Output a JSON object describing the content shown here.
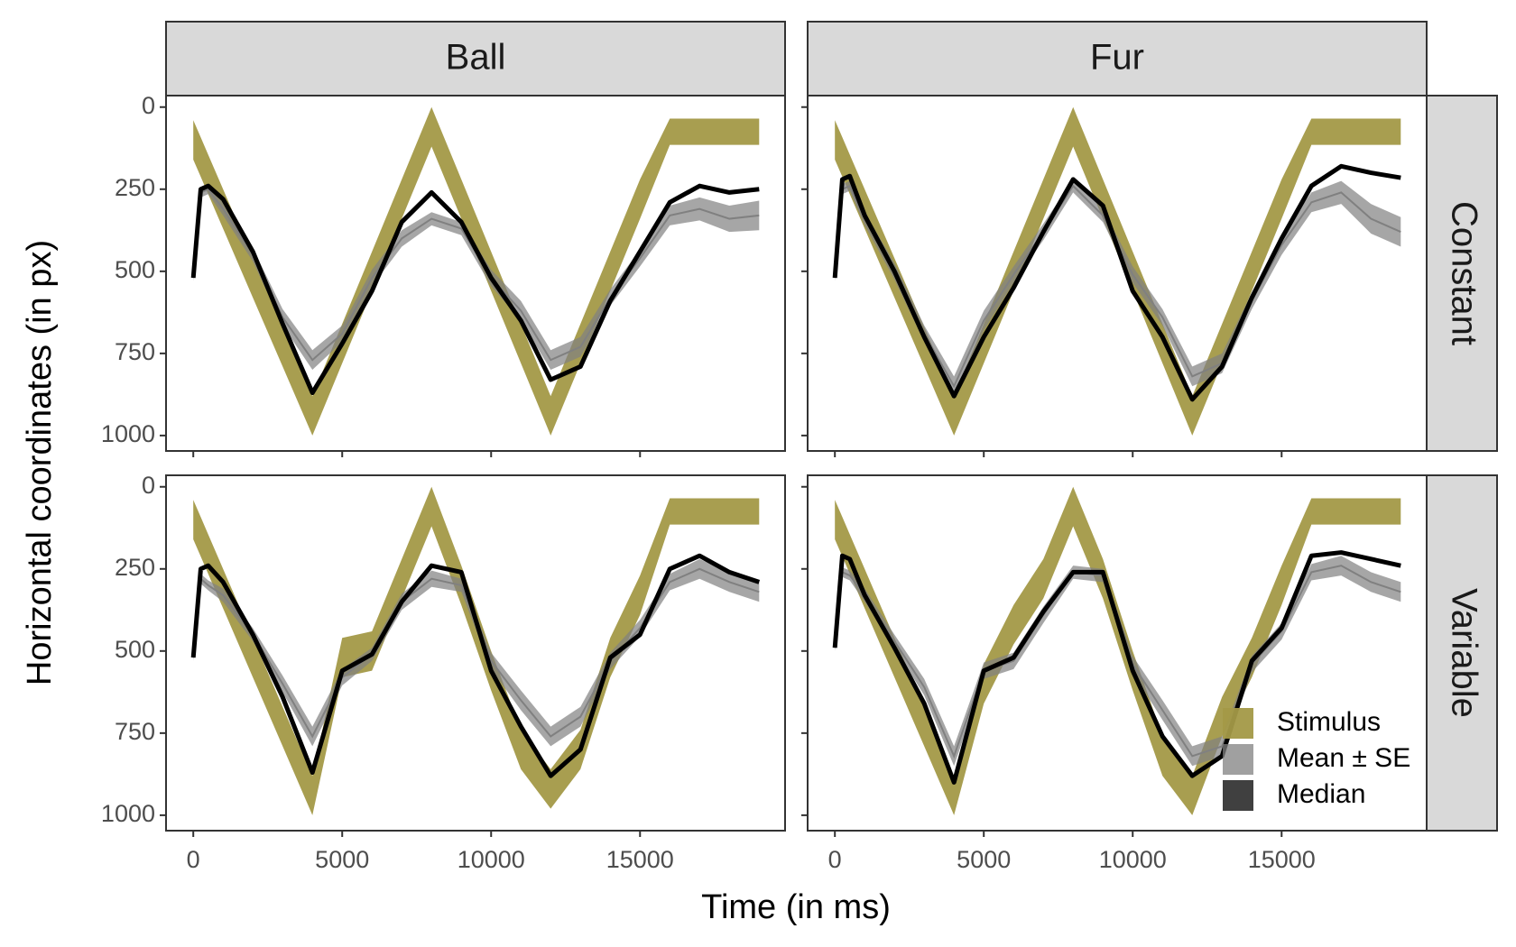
{
  "chart_data": {
    "type": "facet-ribbon-line",
    "xlabel": "Time (in ms)",
    "ylabel": "Horizontal coordinates (in px)",
    "columns": [
      "Ball",
      "Fur"
    ],
    "rows": [
      "Constant",
      "Variable"
    ],
    "xlim": [
      -915,
      19870
    ],
    "ylim": [
      -35,
      1047
    ],
    "y_reversed": true,
    "xticks": [
      0,
      5000,
      10000,
      15000
    ],
    "yticks": [
      0,
      250,
      500,
      750,
      1000
    ],
    "grid": false,
    "legend": "bottom-right",
    "series": [
      {
        "name": "Stimulus",
        "color": "#a39947"
      },
      {
        "name": "Mean ± SE",
        "color": "#808080"
      },
      {
        "name": "Median",
        "color": "#000000"
      }
    ],
    "panels": [
      {
        "x": [
          0,
          250,
          500,
          1000,
          2000,
          3000,
          4000,
          5000,
          6000,
          7000,
          8000,
          9000,
          10000,
          11000,
          12000,
          13000,
          14000,
          15000,
          16000,
          17000,
          18000,
          19000
        ],
        "stimulus_low": [
          40,
          92,
          145,
          250,
          460,
          670,
          880,
          660,
          440,
          220,
          0,
          220,
          440,
          660,
          880,
          660,
          440,
          220,
          35,
          35,
          35,
          35
        ],
        "stimulus_high": [
          160,
          212,
          265,
          370,
          580,
          790,
          1000,
          780,
          560,
          340,
          120,
          340,
          560,
          780,
          1000,
          780,
          560,
          340,
          115,
          115,
          115,
          115
        ],
        "mean": [
          520,
          260,
          250,
          310,
          450,
          640,
          770,
          690,
          520,
          400,
          340,
          370,
          520,
          620,
          770,
          730,
          580,
          460,
          330,
          310,
          340,
          330
        ],
        "se": [
          10,
          15,
          15,
          20,
          20,
          25,
          30,
          25,
          25,
          25,
          20,
          20,
          25,
          30,
          30,
          30,
          25,
          25,
          30,
          35,
          40,
          45
        ],
        "median": [
          520,
          250,
          240,
          280,
          440,
          660,
          870,
          720,
          560,
          350,
          260,
          350,
          520,
          650,
          830,
          790,
          590,
          440,
          290,
          240,
          260,
          250
        ]
      },
      {
        "x": [
          0,
          250,
          500,
          1000,
          2000,
          3000,
          4000,
          5000,
          6000,
          7000,
          8000,
          9000,
          10000,
          11000,
          12000,
          13000,
          14000,
          15000,
          16000,
          17000,
          18000,
          19000
        ],
        "stimulus_low": [
          40,
          92,
          145,
          250,
          460,
          670,
          880,
          660,
          440,
          220,
          0,
          220,
          440,
          660,
          880,
          660,
          440,
          220,
          35,
          35,
          35,
          35
        ],
        "stimulus_high": [
          160,
          212,
          265,
          370,
          580,
          790,
          1000,
          780,
          560,
          340,
          120,
          340,
          560,
          780,
          1000,
          780,
          560,
          340,
          115,
          115,
          115,
          115
        ],
        "mean": [
          520,
          250,
          240,
          340,
          500,
          690,
          850,
          650,
          510,
          380,
          240,
          330,
          510,
          640,
          820,
          780,
          590,
          420,
          290,
          260,
          340,
          380
        ],
        "se": [
          10,
          15,
          15,
          20,
          25,
          25,
          30,
          30,
          25,
          25,
          20,
          20,
          25,
          25,
          30,
          30,
          25,
          30,
          30,
          35,
          45,
          45
        ],
        "median": [
          520,
          220,
          210,
          330,
          500,
          700,
          880,
          700,
          550,
          380,
          220,
          300,
          560,
          700,
          890,
          790,
          580,
          400,
          240,
          180,
          200,
          215
        ]
      },
      {
        "x": [
          0,
          250,
          500,
          1000,
          2000,
          3000,
          4000,
          5000,
          6000,
          7000,
          8000,
          9000,
          10000,
          11000,
          12000,
          13000,
          14000,
          15000,
          16000,
          17000,
          18000,
          19000
        ],
        "stimulus_low": [
          40,
          92,
          145,
          250,
          460,
          670,
          880,
          460,
          440,
          220,
          0,
          240,
          500,
          740,
          860,
          740,
          460,
          270,
          35,
          35,
          35,
          35
        ],
        "stimulus_high": [
          160,
          212,
          265,
          370,
          580,
          790,
          1000,
          580,
          560,
          340,
          120,
          360,
          620,
          860,
          980,
          860,
          580,
          390,
          115,
          115,
          115,
          115
        ],
        "mean": [
          520,
          280,
          300,
          330,
          450,
          600,
          760,
          580,
          510,
          350,
          280,
          300,
          530,
          650,
          760,
          700,
          530,
          430,
          290,
          250,
          290,
          320
        ],
        "se": [
          10,
          15,
          15,
          20,
          20,
          25,
          30,
          25,
          20,
          25,
          25,
          20,
          25,
          30,
          30,
          30,
          25,
          25,
          25,
          30,
          30,
          30
        ],
        "median": [
          520,
          250,
          240,
          290,
          450,
          640,
          870,
          560,
          510,
          350,
          240,
          260,
          560,
          730,
          880,
          800,
          520,
          450,
          250,
          210,
          260,
          290
        ]
      },
      {
        "x": [
          0,
          250,
          500,
          1000,
          2000,
          3000,
          4000,
          5000,
          6000,
          7000,
          8000,
          9000,
          10000,
          11000,
          12000,
          13000,
          14000,
          15000,
          16000,
          17000,
          18000,
          19000
        ],
        "stimulus_low": [
          40,
          92,
          145,
          250,
          460,
          670,
          880,
          540,
          360,
          220,
          0,
          220,
          500,
          760,
          880,
          640,
          460,
          240,
          35,
          35,
          35,
          35
        ],
        "stimulus_high": [
          160,
          212,
          265,
          370,
          580,
          790,
          1000,
          660,
          480,
          340,
          120,
          340,
          620,
          880,
          1000,
          760,
          580,
          360,
          115,
          115,
          115,
          115
        ],
        "mean": [
          490,
          260,
          270,
          330,
          470,
          610,
          820,
          560,
          530,
          390,
          260,
          270,
          540,
          680,
          820,
          790,
          540,
          440,
          260,
          240,
          290,
          320
        ],
        "se": [
          10,
          15,
          15,
          20,
          20,
          25,
          30,
          25,
          25,
          25,
          20,
          20,
          25,
          30,
          30,
          30,
          25,
          25,
          25,
          30,
          30,
          30
        ],
        "median": [
          490,
          210,
          220,
          330,
          490,
          660,
          900,
          560,
          520,
          380,
          260,
          260,
          560,
          760,
          880,
          820,
          530,
          430,
          210,
          200,
          220,
          240
        ]
      }
    ]
  }
}
